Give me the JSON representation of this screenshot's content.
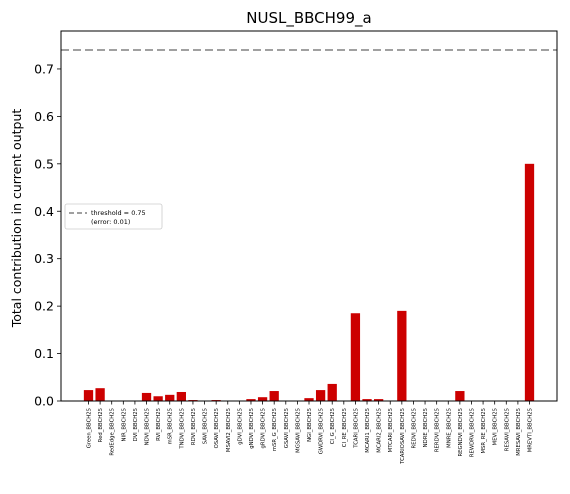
{
  "chart_data": {
    "type": "bar",
    "title": "NUSL_BBCH99_a",
    "xlabel": "",
    "ylabel": "Total contribution in current output",
    "ylim": [
      0,
      0.78
    ],
    "yticks": [
      "0.0",
      "0.1",
      "0.2",
      "0.3",
      "0.4",
      "0.5",
      "0.6",
      "0.7"
    ],
    "grid": false,
    "bar_color": "#cc0000",
    "threshold": {
      "value": 0.74,
      "color": "#808080",
      "style": "dashed",
      "legend_line1": "threshold = 0.75",
      "legend_line2": "(error: 0.01)",
      "legend_position": "center-left"
    },
    "categories": [
      "Green_BBCH25",
      "Red_BBCH25",
      "RedEdge_BBCH25",
      "NIR_BBCH25",
      "DVI_BBCH25",
      "NDVI_BBCH25",
      "RVI_BBCH25",
      "mSR_BBCH25",
      "TNDVI_BBCH25",
      "RDVI_BBCH25",
      "SAVI_BBCH25",
      "OSAVI_BBCH25",
      "MSAVI2_BBCH25",
      "gDVI_BBCH25",
      "gNDVI_BBCH25",
      "gRDVI_BBCH25",
      "mSR_G_BBCH25",
      "GSAVI_BBCH25",
      "MGSAVI_BBCH25",
      "NGI_BBCH25",
      "GWDRVI_BBCH25",
      "CI_G_BBCH25",
      "CI_RE_BBCH25",
      "TCARI_BBCH25",
      "MCARI1_BBCH25",
      "MCARI2_BBCH25",
      "MTCARI_BBCH25",
      "TCARIOSAVI_BBCH25",
      "REDVI_BBCH25",
      "NDRE_BBCH25",
      "RERDVI_BBCH25",
      "MNRE_BBCH25",
      "REGNDVI_BBCH25",
      "REWDRVI_BBCH25",
      "MSR_RE_BBCH25",
      "MEVI_BBCH25",
      "RESAVI_BBCH25",
      "MRESAVI_BBCH25",
      "MREVTI_BBCH25"
    ],
    "values": [
      0.023,
      0.027,
      0.0,
      0.0,
      0.0,
      0.017,
      0.01,
      0.013,
      0.019,
      0.002,
      0.0,
      0.002,
      0.0,
      0.0,
      0.004,
      0.008,
      0.021,
      0.0,
      0.0,
      0.006,
      0.023,
      0.036,
      0.0,
      0.185,
      0.004,
      0.004,
      0.0,
      0.19,
      0.0,
      0.0,
      0.0,
      0.0,
      0.021,
      0.0,
      0.0,
      0.0,
      0.0,
      0.0,
      0.5
    ]
  }
}
